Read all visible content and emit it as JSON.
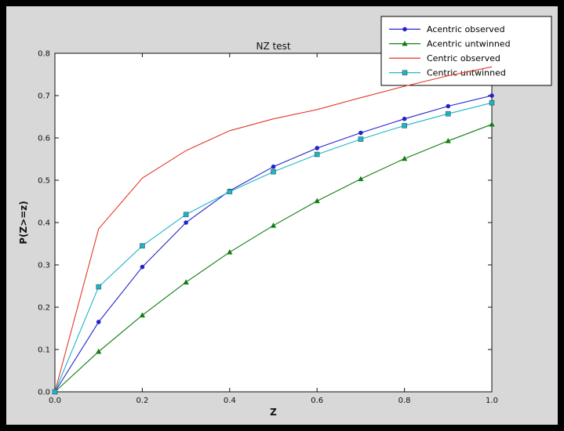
{
  "colors": {
    "outer_border": "#000000",
    "figure_background": "#d8d8d8",
    "plot_background": "#ffffff",
    "axis": "#111111",
    "legend_background": "#ffffff",
    "legend_border": "#000000"
  },
  "chart_data": {
    "type": "line",
    "title": "NZ test",
    "xlabel": "Z",
    "ylabel": "P(Z>=z)",
    "xlim": [
      0.0,
      1.0
    ],
    "ylim": [
      0.0,
      0.8
    ],
    "xticks": [
      0.0,
      0.2,
      0.4,
      0.6,
      0.8,
      1.0
    ],
    "yticks": [
      0.0,
      0.1,
      0.2,
      0.3,
      0.4,
      0.5,
      0.6,
      0.7,
      0.8
    ],
    "grid": false,
    "legend": {
      "position": "upper-right",
      "entries": [
        "Acentric observed",
        "Acentric untwinned",
        "Centric observed",
        "Centric untwinned"
      ]
    },
    "x": [
      0.0,
      0.1,
      0.2,
      0.3,
      0.4,
      0.5,
      0.6,
      0.7,
      0.8,
      0.9,
      1.0
    ],
    "series": [
      {
        "name": "Acentric observed",
        "color": "#2222cc",
        "marker": "circle",
        "values": [
          0.0,
          0.165,
          0.295,
          0.4,
          0.475,
          0.532,
          0.576,
          0.612,
          0.645,
          0.675,
          0.7
        ]
      },
      {
        "name": "Acentric untwinned",
        "color": "#0f7d0f",
        "marker": "triangle",
        "values": [
          0.0,
          0.095,
          0.181,
          0.259,
          0.33,
          0.393,
          0.451,
          0.503,
          0.551,
          0.593,
          0.632
        ]
      },
      {
        "name": "Centric observed",
        "color": "#e53828",
        "marker": "none",
        "values": [
          0.0,
          0.385,
          0.505,
          0.57,
          0.617,
          0.645,
          0.667,
          0.695,
          0.722,
          0.747,
          0.768
        ]
      },
      {
        "name": "Centric untwinned",
        "color": "#1fb5c5",
        "marker": "square",
        "values": [
          0.0,
          0.248,
          0.345,
          0.419,
          0.473,
          0.52,
          0.561,
          0.597,
          0.629,
          0.657,
          0.683
        ]
      }
    ]
  }
}
